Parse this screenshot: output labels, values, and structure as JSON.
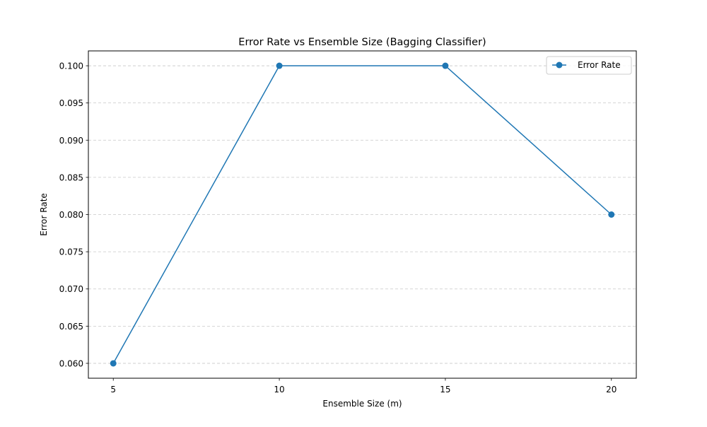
{
  "chart_data": {
    "type": "line",
    "title": "Error Rate vs Ensemble Size (Bagging Classifier)",
    "xlabel": "Ensemble Size (m)",
    "ylabel": "Error Rate",
    "x": [
      5,
      10,
      15,
      20
    ],
    "series": [
      {
        "name": "Error Rate",
        "values": [
          0.06,
          0.1,
          0.1,
          0.08
        ],
        "color": "#1f77b4",
        "marker": "circle"
      }
    ],
    "xlim": [
      4.25,
      20.75
    ],
    "ylim": [
      0.058,
      0.102
    ],
    "xticks": [
      5,
      10,
      15,
      20
    ],
    "xtick_labels": [
      "5",
      "10",
      "15",
      "20"
    ],
    "yticks": [
      0.06,
      0.065,
      0.07,
      0.075,
      0.08,
      0.085,
      0.09,
      0.095,
      0.1
    ],
    "ytick_labels": [
      "0.060",
      "0.065",
      "0.070",
      "0.075",
      "0.080",
      "0.085",
      "0.090",
      "0.095",
      "0.100"
    ],
    "grid": "y-dashed",
    "legend_position": "top-right"
  }
}
